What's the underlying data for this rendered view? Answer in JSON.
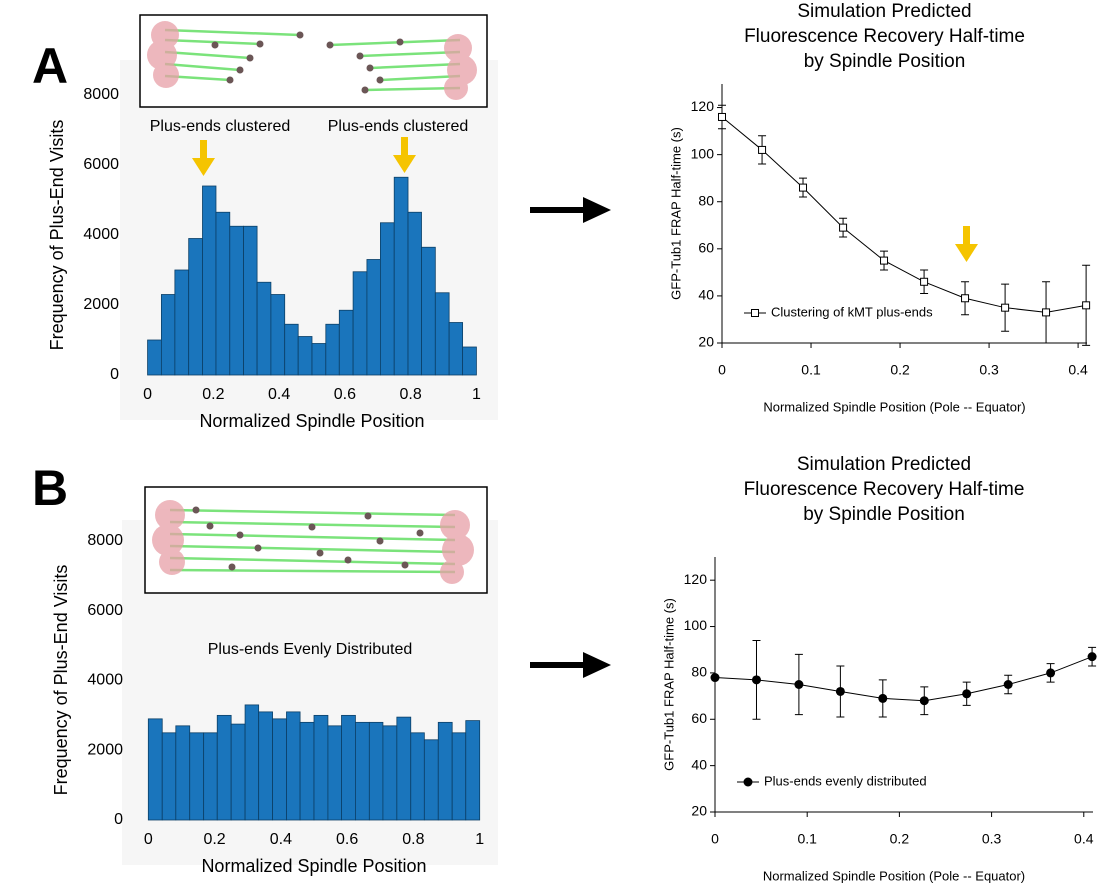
{
  "panel_labels": [
    "A",
    "B"
  ],
  "chart_data": [
    {
      "type": "histogram",
      "xlabel": "Normalized Spindle Position",
      "ylabel": "Frequency of Plus-End Visits",
      "annotations": [
        "Plus-ends clustered",
        "Plus-ends clustered"
      ],
      "bins": [
        0,
        0.042,
        0.083,
        0.125,
        0.167,
        0.208,
        0.25,
        0.292,
        0.333,
        0.375,
        0.417,
        0.458,
        0.5,
        0.542,
        0.583,
        0.625,
        0.667,
        0.708,
        0.75,
        0.792,
        0.833,
        0.875,
        0.917,
        0.958,
        1
      ],
      "values": [
        1000,
        2300,
        3000,
        3900,
        5400,
        4650,
        4250,
        4250,
        2650,
        2300,
        1450,
        1100,
        900,
        1450,
        1850,
        2950,
        3300,
        4350,
        5650,
        4650,
        3650,
        2350,
        1500,
        800
      ],
      "color": "#1a75bc",
      "xlim": [
        -0.02,
        1.02
      ],
      "ylim": [
        0,
        8000
      ],
      "xticks": [
        0,
        0.2,
        0.4,
        0.6,
        0.8,
        1
      ],
      "yticks": [
        0,
        2000,
        4000,
        6000,
        8000
      ]
    },
    {
      "type": "line",
      "title": [
        "Simulation Predicted",
        "Fluorescence Recovery Half-time",
        "by Spindle Position"
      ],
      "xlabel": "Normalized Spindle Position (Pole -- Equator)",
      "ylabel": "GFP-Tub1 FRAP Half-time (s)",
      "x": [
        0,
        0.045,
        0.091,
        0.136,
        0.182,
        0.227,
        0.273,
        0.318,
        0.364,
        0.409
      ],
      "series": [
        {
          "name": "Clustering of kMT plus-ends",
          "color": "#000000",
          "marker": "square",
          "values": [
            116,
            102,
            86,
            69,
            55,
            46,
            39,
            35,
            33,
            36
          ],
          "errors": [
            5,
            6,
            4,
            4,
            4,
            5,
            7,
            10,
            13,
            17
          ]
        }
      ],
      "xlim": [
        0,
        0.41
      ],
      "ylim": [
        20,
        130
      ],
      "xticks": [
        0,
        0.1,
        0.2,
        0.3,
        0.4
      ],
      "yticks": [
        20,
        40,
        60,
        80,
        100,
        120
      ],
      "legend": "lower left"
    },
    {
      "type": "histogram",
      "xlabel": "Normalized Spindle Position",
      "ylabel": "Frequency of Plus-End Visits",
      "annotations": [
        "Plus-ends Evenly Distributed"
      ],
      "bins": [
        0,
        0.042,
        0.083,
        0.125,
        0.167,
        0.208,
        0.25,
        0.292,
        0.333,
        0.375,
        0.417,
        0.458,
        0.5,
        0.542,
        0.583,
        0.625,
        0.667,
        0.708,
        0.75,
        0.792,
        0.833,
        0.875,
        0.917,
        0.958,
        1
      ],
      "values": [
        2900,
        2500,
        2700,
        2500,
        2500,
        3000,
        2750,
        3300,
        3100,
        2900,
        3100,
        2800,
        3000,
        2700,
        3000,
        2800,
        2800,
        2700,
        2950,
        2500,
        2300,
        2800,
        2500,
        2850
      ],
      "color": "#1a75bc",
      "xlim": [
        -0.01,
        1.01
      ],
      "ylim": [
        0,
        8000
      ],
      "xticks": [
        0,
        0.2,
        0.4,
        0.6,
        0.8,
        1
      ],
      "yticks": [
        0,
        2000,
        4000,
        6000,
        8000
      ]
    },
    {
      "type": "line",
      "title": [
        "Simulation Predicted",
        "Fluorescence Recovery Half-time",
        "by Spindle Position"
      ],
      "xlabel": "Normalized Spindle Position (Pole -- Equator)",
      "ylabel": "GFP-Tub1 FRAP Half-time (s)",
      "x": [
        0,
        0.045,
        0.091,
        0.136,
        0.182,
        0.227,
        0.273,
        0.318,
        0.364,
        0.409
      ],
      "series": [
        {
          "name": "Plus-ends evenly distributed",
          "color": "#000000",
          "marker": "circle",
          "values": [
            78,
            77,
            75,
            72,
            69,
            68,
            71,
            75,
            80,
            87
          ],
          "errors": [
            0,
            17,
            13,
            11,
            8,
            6,
            5,
            4,
            4,
            4
          ]
        }
      ],
      "xlim": [
        0,
        0.41
      ],
      "ylim": [
        20,
        130
      ],
      "xticks": [
        0,
        0.1,
        0.2,
        0.3,
        0.4
      ],
      "yticks": [
        20,
        40,
        60,
        80,
        100,
        120
      ],
      "legend": "lower left"
    }
  ]
}
